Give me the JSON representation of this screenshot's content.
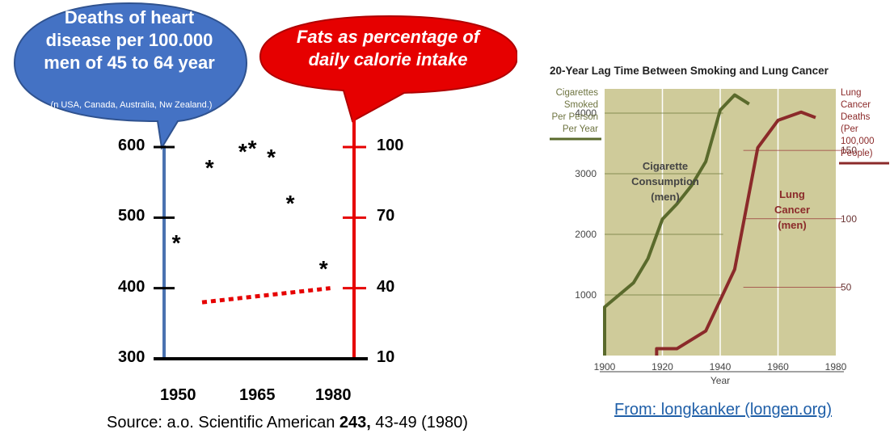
{
  "left": {
    "left_bubble": {
      "title": "Deaths of heart disease per 100.000 men of 45 to 64 year",
      "note": "(n USA, Canada, Australia, Nw Zealand.)",
      "color": "#4472c4"
    },
    "right_bubble": {
      "title": "Fats as percentage of daily calorie intake",
      "color": "#e60000"
    },
    "source": {
      "prefix": "Source: a.o. Scientific American ",
      "bold": "243,",
      "suffix": " 43-49 (1980)"
    }
  },
  "chart_data": [
    {
      "type": "scatter",
      "x_ticks": [
        "1950",
        "1965",
        "1980"
      ],
      "y_left_ticks": [
        "600",
        "500",
        "400",
        "300"
      ],
      "y_right_ticks": [
        "100",
        "70",
        "40",
        "10"
      ],
      "ylim_left": [
        300,
        600
      ],
      "ylim_right": [
        10,
        100
      ],
      "xlim": [
        1945,
        1985
      ],
      "series": [
        {
          "marker": "*",
          "axis": "left",
          "points": [
            [
              1948,
              468
            ],
            [
              1955,
              575
            ],
            [
              1962,
              598
            ],
            [
              1964,
              602
            ],
            [
              1968,
              590
            ],
            [
              1972,
              524
            ],
            [
              1979,
              432
            ]
          ]
        },
        {
          "line": "dotted",
          "color": "#e60000",
          "axis": "left",
          "points": [
            [
              1953,
              380
            ],
            [
              1980,
              400
            ]
          ]
        }
      ]
    },
    {
      "type": "line",
      "title": "20-Year Lag Time Between Smoking and Lung Cancer",
      "xlabel": "Year",
      "y_left_label": "Cigarettes Smoked Per Person Per Year",
      "y_right_label": "Lung Cancer Deaths (Per 100,000 People)",
      "x_ticks": [
        "1900",
        "1920",
        "1940",
        "1960",
        "1980"
      ],
      "y_left_ticks": [
        "1000",
        "2000",
        "3000",
        "4000"
      ],
      "y_right_ticks": [
        "50",
        "100",
        "150"
      ],
      "xlim": [
        1900,
        1980
      ],
      "ylim_left": [
        0,
        4400
      ],
      "ylim_right": [
        0,
        195
      ],
      "plot_bg": "#cfcb9a",
      "series": [
        {
          "name": "Cigarette Consumption (men)",
          "color": "#5a6a2c",
          "axis": "left",
          "x": [
            1900,
            1900,
            1910,
            1915,
            1920,
            1925,
            1930,
            1935,
            1940,
            1945,
            1950
          ],
          "y": [
            0,
            800,
            1200,
            1600,
            2250,
            2500,
            2800,
            3200,
            4050,
            4300,
            4150
          ]
        },
        {
          "name": "Lung Cancer (men)",
          "color": "#8b2a2a",
          "axis": "right",
          "x": [
            1918,
            1918,
            1925,
            1935,
            1945,
            1953,
            1960,
            1968,
            1973
          ],
          "y": [
            0,
            5,
            5,
            18,
            63,
            152,
            172,
            178,
            174
          ]
        }
      ]
    }
  ],
  "right": {
    "series_labels": [
      [
        "Cigarette",
        "Consumption",
        "(men)"
      ],
      [
        "Lung",
        "Cancer",
        "(men)"
      ]
    ],
    "left_label_lines": [
      "Cigarettes",
      "Smoked",
      "Per Person",
      "Per Year"
    ],
    "right_label_lines": [
      "Lung",
      "Cancer",
      "Deaths",
      "(Per",
      "100,000",
      "People)"
    ]
  },
  "link_text": "From: longkanker (longen.org)"
}
